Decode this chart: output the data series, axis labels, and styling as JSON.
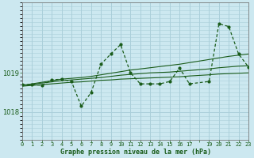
{
  "title": "Graphe pression niveau de la mer (hPa)",
  "bg_color": "#cce8f0",
  "grid_color": "#aacfda",
  "line_color": "#1a5c1a",
  "spine_color": "#777777",
  "xlim": [
    0,
    23
  ],
  "ylim": [
    1017.3,
    1020.8
  ],
  "yticks": [
    1018,
    1019
  ],
  "xtick_labels": [
    "0",
    "1",
    "2",
    "3",
    "4",
    "5",
    "6",
    "7",
    "8",
    "9",
    "10",
    "11",
    "12",
    "13",
    "14",
    "15",
    "16",
    "17",
    "",
    "19",
    "20",
    "21",
    "22",
    "23"
  ],
  "x_main": [
    0,
    1,
    2,
    3,
    4,
    5,
    6,
    7,
    8,
    9,
    10,
    11,
    12,
    13,
    14,
    15,
    16,
    17,
    19,
    20,
    21,
    22,
    23
  ],
  "y_main": [
    1018.7,
    1018.7,
    1018.68,
    1018.82,
    1018.84,
    1018.78,
    1018.15,
    1018.5,
    1019.22,
    1019.48,
    1019.72,
    1019.0,
    1018.72,
    1018.72,
    1018.72,
    1018.78,
    1019.12,
    1018.72,
    1018.78,
    1020.25,
    1020.18,
    1019.48,
    1019.15
  ],
  "x_smooth": [
    0,
    1,
    2,
    3,
    4,
    5,
    6,
    7,
    8,
    9,
    10,
    11,
    12,
    13,
    14,
    15,
    16,
    17,
    19,
    20,
    21,
    22,
    23
  ],
  "y_smooth1": [
    1018.68,
    1018.72,
    1018.76,
    1018.8,
    1018.84,
    1018.86,
    1018.88,
    1018.91,
    1018.95,
    1018.99,
    1019.03,
    1019.07,
    1019.1,
    1019.13,
    1019.16,
    1019.19,
    1019.22,
    1019.26,
    1019.34,
    1019.38,
    1019.42,
    1019.45,
    1019.48
  ],
  "y_smooth2": [
    1018.68,
    1018.71,
    1018.74,
    1018.77,
    1018.8,
    1018.82,
    1018.84,
    1018.86,
    1018.88,
    1018.91,
    1018.94,
    1018.96,
    1018.98,
    1019.0,
    1019.01,
    1019.02,
    1019.04,
    1019.06,
    1019.1,
    1019.13,
    1019.15,
    1019.17,
    1019.18
  ],
  "y_smooth3": [
    1018.66,
    1018.68,
    1018.7,
    1018.72,
    1018.74,
    1018.76,
    1018.77,
    1018.79,
    1018.81,
    1018.82,
    1018.84,
    1018.85,
    1018.86,
    1018.87,
    1018.88,
    1018.89,
    1018.9,
    1018.92,
    1018.95,
    1018.97,
    1018.98,
    1018.99,
    1019.0
  ]
}
